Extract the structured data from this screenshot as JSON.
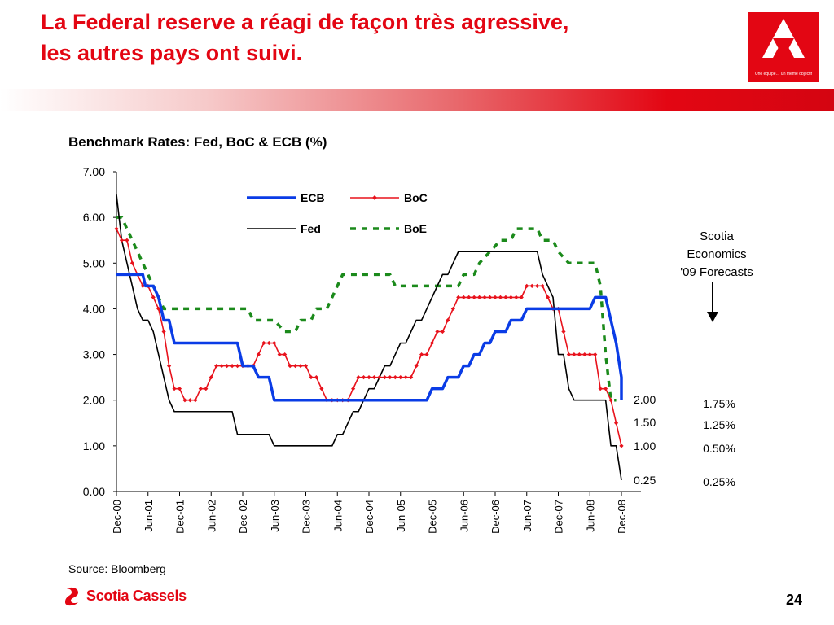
{
  "header": {
    "title_line1": "La Federal reserve a réagi de façon très agressive,",
    "title_line2": "les autres pays ont suivi.",
    "logo_tagline": "Une équipe… un même objectif"
  },
  "colors": {
    "brand_red": "#e30613",
    "ecb": "#0a3ce6",
    "boc": "#e8121c",
    "fed": "#000000",
    "boe": "#1b8a1b"
  },
  "chart_data": {
    "type": "line",
    "title": "Benchmark Rates: Fed, BoC & ECB (%)",
    "xlabel": "",
    "ylabel": "",
    "ylim": [
      0,
      7
    ],
    "y_ticks": [
      "0.00",
      "1.00",
      "2.00",
      "3.00",
      "4.00",
      "5.00",
      "6.00",
      "7.00"
    ],
    "x_ticks": [
      "Dec-00",
      "Jun-01",
      "Dec-01",
      "Jun-02",
      "Dec-02",
      "Jun-03",
      "Dec-03",
      "Jun-04",
      "Dec-04",
      "Jun-05",
      "Dec-05",
      "Jun-06",
      "Dec-06",
      "Jun-07",
      "Dec-07",
      "Jun-08",
      "Dec-08"
    ],
    "x_range_months": [
      0,
      96
    ],
    "grid": false,
    "legend": {
      "position": "top-center",
      "entries": [
        "ECB",
        "BoC",
        "Fed",
        "BoE"
      ]
    },
    "series": [
      {
        "name": "ECB",
        "points": [
          [
            0,
            4.75
          ],
          [
            5,
            4.75
          ],
          [
            5.5,
            4.5
          ],
          [
            7,
            4.5
          ],
          [
            8,
            4.25
          ],
          [
            9,
            3.75
          ],
          [
            10,
            3.75
          ],
          [
            11,
            3.25
          ],
          [
            23,
            3.25
          ],
          [
            24,
            2.75
          ],
          [
            26,
            2.75
          ],
          [
            27,
            2.5
          ],
          [
            29,
            2.5
          ],
          [
            30,
            2.0
          ],
          [
            59,
            2.0
          ],
          [
            60,
            2.25
          ],
          [
            62,
            2.25
          ],
          [
            63,
            2.5
          ],
          [
            65,
            2.5
          ],
          [
            66,
            2.75
          ],
          [
            67,
            2.75
          ],
          [
            68,
            3.0
          ],
          [
            69,
            3.0
          ],
          [
            70,
            3.25
          ],
          [
            71,
            3.25
          ],
          [
            72,
            3.5
          ],
          [
            74,
            3.5
          ],
          [
            75,
            3.75
          ],
          [
            77,
            3.75
          ],
          [
            78,
            4.0
          ],
          [
            90,
            4.0
          ],
          [
            91,
            4.25
          ],
          [
            93,
            4.25
          ],
          [
            94,
            3.75
          ],
          [
            95,
            3.25
          ],
          [
            96,
            2.5
          ],
          [
            96,
            2.0
          ]
        ]
      },
      {
        "name": "BoC",
        "points": [
          [
            0,
            5.75
          ],
          [
            1,
            5.5
          ],
          [
            2,
            5.5
          ],
          [
            3,
            5.0
          ],
          [
            4,
            4.75
          ],
          [
            5,
            4.5
          ],
          [
            6,
            4.5
          ],
          [
            7,
            4.25
          ],
          [
            8,
            4.0
          ],
          [
            9,
            3.5
          ],
          [
            10,
            2.75
          ],
          [
            11,
            2.25
          ],
          [
            12,
            2.25
          ],
          [
            13,
            2.0
          ],
          [
            14,
            2.0
          ],
          [
            15,
            2.0
          ],
          [
            16,
            2.25
          ],
          [
            17,
            2.25
          ],
          [
            18,
            2.5
          ],
          [
            19,
            2.75
          ],
          [
            20,
            2.75
          ],
          [
            21,
            2.75
          ],
          [
            22,
            2.75
          ],
          [
            23,
            2.75
          ],
          [
            24,
            2.75
          ],
          [
            25,
            2.75
          ],
          [
            26,
            2.75
          ],
          [
            27,
            3.0
          ],
          [
            28,
            3.25
          ],
          [
            29,
            3.25
          ],
          [
            30,
            3.25
          ],
          [
            31,
            3.0
          ],
          [
            32,
            3.0
          ],
          [
            33,
            2.75
          ],
          [
            34,
            2.75
          ],
          [
            35,
            2.75
          ],
          [
            36,
            2.75
          ],
          [
            37,
            2.5
          ],
          [
            38,
            2.5
          ],
          [
            39,
            2.25
          ],
          [
            40,
            2.0
          ],
          [
            41,
            2.0
          ],
          [
            42,
            2.0
          ],
          [
            43,
            2.0
          ],
          [
            44,
            2.0
          ],
          [
            45,
            2.25
          ],
          [
            46,
            2.5
          ],
          [
            47,
            2.5
          ],
          [
            48,
            2.5
          ],
          [
            49,
            2.5
          ],
          [
            50,
            2.5
          ],
          [
            51,
            2.5
          ],
          [
            52,
            2.5
          ],
          [
            53,
            2.5
          ],
          [
            54,
            2.5
          ],
          [
            55,
            2.5
          ],
          [
            56,
            2.5
          ],
          [
            57,
            2.75
          ],
          [
            58,
            3.0
          ],
          [
            59,
            3.0
          ],
          [
            60,
            3.25
          ],
          [
            61,
            3.5
          ],
          [
            62,
            3.5
          ],
          [
            63,
            3.75
          ],
          [
            64,
            4.0
          ],
          [
            65,
            4.25
          ],
          [
            66,
            4.25
          ],
          [
            67,
            4.25
          ],
          [
            68,
            4.25
          ],
          [
            69,
            4.25
          ],
          [
            70,
            4.25
          ],
          [
            71,
            4.25
          ],
          [
            72,
            4.25
          ],
          [
            73,
            4.25
          ],
          [
            74,
            4.25
          ],
          [
            75,
            4.25
          ],
          [
            76,
            4.25
          ],
          [
            77,
            4.25
          ],
          [
            78,
            4.5
          ],
          [
            79,
            4.5
          ],
          [
            80,
            4.5
          ],
          [
            81,
            4.5
          ],
          [
            82,
            4.25
          ],
          [
            83,
            4.0
          ],
          [
            84,
            4.0
          ],
          [
            85,
            3.5
          ],
          [
            86,
            3.0
          ],
          [
            87,
            3.0
          ],
          [
            88,
            3.0
          ],
          [
            89,
            3.0
          ],
          [
            90,
            3.0
          ],
          [
            91,
            3.0
          ],
          [
            92,
            2.25
          ],
          [
            93,
            2.25
          ],
          [
            94,
            2.0
          ],
          [
            95,
            1.5
          ],
          [
            96,
            1.0
          ]
        ]
      },
      {
        "name": "Fed",
        "points": [
          [
            0,
            6.5
          ],
          [
            1,
            5.5
          ],
          [
            2,
            5.0
          ],
          [
            3,
            4.5
          ],
          [
            4,
            4.0
          ],
          [
            5,
            3.75
          ],
          [
            6,
            3.75
          ],
          [
            7,
            3.5
          ],
          [
            8,
            3.0
          ],
          [
            9,
            2.5
          ],
          [
            10,
            2.0
          ],
          [
            11,
            1.75
          ],
          [
            22,
            1.75
          ],
          [
            23,
            1.25
          ],
          [
            29,
            1.25
          ],
          [
            30,
            1.0
          ],
          [
            41,
            1.0
          ],
          [
            42,
            1.25
          ],
          [
            43,
            1.25
          ],
          [
            44,
            1.5
          ],
          [
            45,
            1.75
          ],
          [
            46,
            1.75
          ],
          [
            47,
            2.0
          ],
          [
            48,
            2.25
          ],
          [
            49,
            2.25
          ],
          [
            50,
            2.5
          ],
          [
            51,
            2.75
          ],
          [
            52,
            2.75
          ],
          [
            53,
            3.0
          ],
          [
            54,
            3.25
          ],
          [
            55,
            3.25
          ],
          [
            56,
            3.5
          ],
          [
            57,
            3.75
          ],
          [
            58,
            3.75
          ],
          [
            59,
            4.0
          ],
          [
            60,
            4.25
          ],
          [
            61,
            4.5
          ],
          [
            62,
            4.75
          ],
          [
            63,
            4.75
          ],
          [
            64,
            5.0
          ],
          [
            65,
            5.25
          ],
          [
            79,
            5.25
          ],
          [
            80,
            5.25
          ],
          [
            81,
            4.75
          ],
          [
            82,
            4.5
          ],
          [
            83,
            4.25
          ],
          [
            84,
            3.0
          ],
          [
            85,
            3.0
          ],
          [
            86,
            2.25
          ],
          [
            87,
            2.0
          ],
          [
            93,
            2.0
          ],
          [
            94,
            1.0
          ],
          [
            95,
            1.0
          ],
          [
            96,
            0.25
          ]
        ]
      },
      {
        "name": "BoE",
        "points": [
          [
            0,
            6.0
          ],
          [
            1,
            6.0
          ],
          [
            2,
            5.75
          ],
          [
            3,
            5.5
          ],
          [
            4,
            5.25
          ],
          [
            5,
            5.0
          ],
          [
            6,
            4.75
          ],
          [
            7,
            4.5
          ],
          [
            8,
            4.25
          ],
          [
            9,
            4.0
          ],
          [
            10,
            4.0
          ],
          [
            11,
            4.0
          ],
          [
            25,
            4.0
          ],
          [
            26,
            3.75
          ],
          [
            30,
            3.75
          ],
          [
            32,
            3.5
          ],
          [
            34,
            3.5
          ],
          [
            35,
            3.75
          ],
          [
            37,
            3.75
          ],
          [
            38,
            4.0
          ],
          [
            40,
            4.0
          ],
          [
            41,
            4.25
          ],
          [
            42,
            4.5
          ],
          [
            43,
            4.75
          ],
          [
            52,
            4.75
          ],
          [
            53,
            4.5
          ],
          [
            58,
            4.5
          ],
          [
            59,
            4.5
          ],
          [
            65,
            4.5
          ],
          [
            66,
            4.75
          ],
          [
            68,
            4.75
          ],
          [
            69,
            5.0
          ],
          [
            71,
            5.25
          ],
          [
            73,
            5.5
          ],
          [
            75,
            5.5
          ],
          [
            76,
            5.75
          ],
          [
            79,
            5.75
          ],
          [
            80,
            5.75
          ],
          [
            81,
            5.5
          ],
          [
            83,
            5.5
          ],
          [
            84,
            5.25
          ],
          [
            86,
            5.0
          ],
          [
            91,
            5.0
          ],
          [
            92,
            4.5
          ],
          [
            93,
            3.0
          ],
          [
            94,
            2.0
          ],
          [
            95,
            2.0
          ]
        ]
      }
    ],
    "forecast_note": "Scotia\nEconomics\n'09 Forecasts",
    "end_value_labels": [
      "2.00",
      "1.50",
      "1.00",
      "0.25"
    ],
    "forecast_labels": [
      "1.75%",
      "1.25%",
      "0.50%",
      "0.25%"
    ]
  },
  "footer": {
    "source": "Source: Bloomberg",
    "brand": "Scotia Cassels",
    "page_number": "24"
  }
}
